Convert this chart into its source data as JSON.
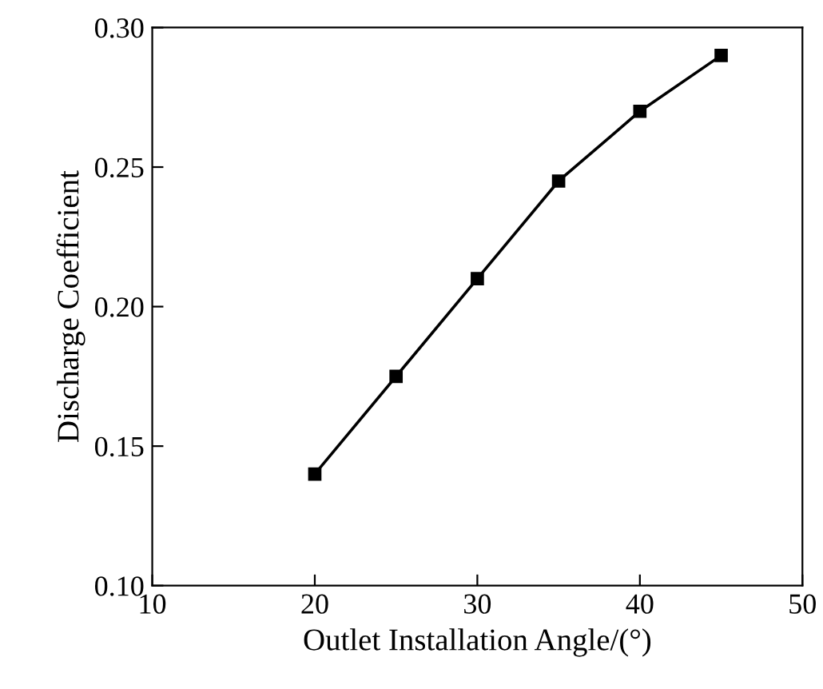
{
  "chart_data": {
    "type": "line",
    "xlabel": "Outlet Installation Angle/(°)",
    "ylabel": "Discharge Coefficient",
    "x": [
      20,
      25,
      30,
      35,
      40,
      45
    ],
    "series": [
      {
        "color": "#000000",
        "values": [
          0.14,
          0.175,
          0.21,
          0.245,
          0.27,
          0.29
        ]
      }
    ],
    "xlim": [
      10,
      50
    ],
    "xticks": [
      10,
      20,
      30,
      40,
      50
    ],
    "ylim": [
      0.1,
      0.3
    ],
    "yticks": [
      {
        "value": 0.1,
        "label": "0.10"
      },
      {
        "value": 0.15,
        "label": "0.15"
      },
      {
        "value": 0.2,
        "label": "0.20"
      },
      {
        "value": 0.25,
        "label": "0.25"
      },
      {
        "value": 0.3,
        "label": "0.30"
      }
    ],
    "marker": "square",
    "line_style": "solid",
    "grid": false,
    "legend": false
  }
}
